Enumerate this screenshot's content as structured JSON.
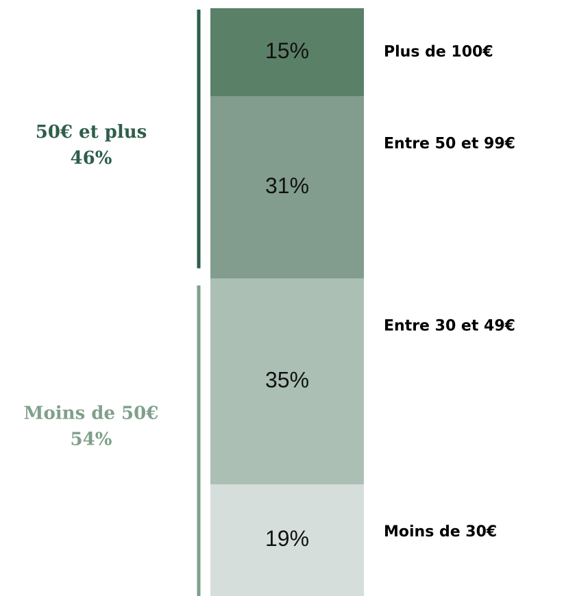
{
  "chart_data": {
    "type": "stacked_bar",
    "series": [
      {
        "name": "Plus de 100€",
        "color": "#5a8068",
        "values": [
          15
        ],
        "value_labels": [
          "15%"
        ]
      },
      {
        "name": "Entre 50 et 99€",
        "color": "#829d8d",
        "values": [
          31
        ],
        "value_labels": [
          "31%"
        ]
      },
      {
        "name": "Entre 30 et 49€",
        "color": "#abbfb4",
        "values": [
          35
        ],
        "value_labels": [
          "35%"
        ]
      },
      {
        "name": "Moins de 30€",
        "color": "#d5dedb",
        "values": [
          19
        ],
        "value_labels": [
          "19%"
        ]
      }
    ],
    "ylim": [
      0,
      100
    ],
    "groups": [
      {
        "name": "50€ et plus",
        "value": 46,
        "value_label": "46%",
        "color": "#2e5e4a"
      },
      {
        "name": "Moins de 50€",
        "value": 54,
        "value_label": "54%",
        "color": "#7fa08a"
      }
    ]
  }
}
